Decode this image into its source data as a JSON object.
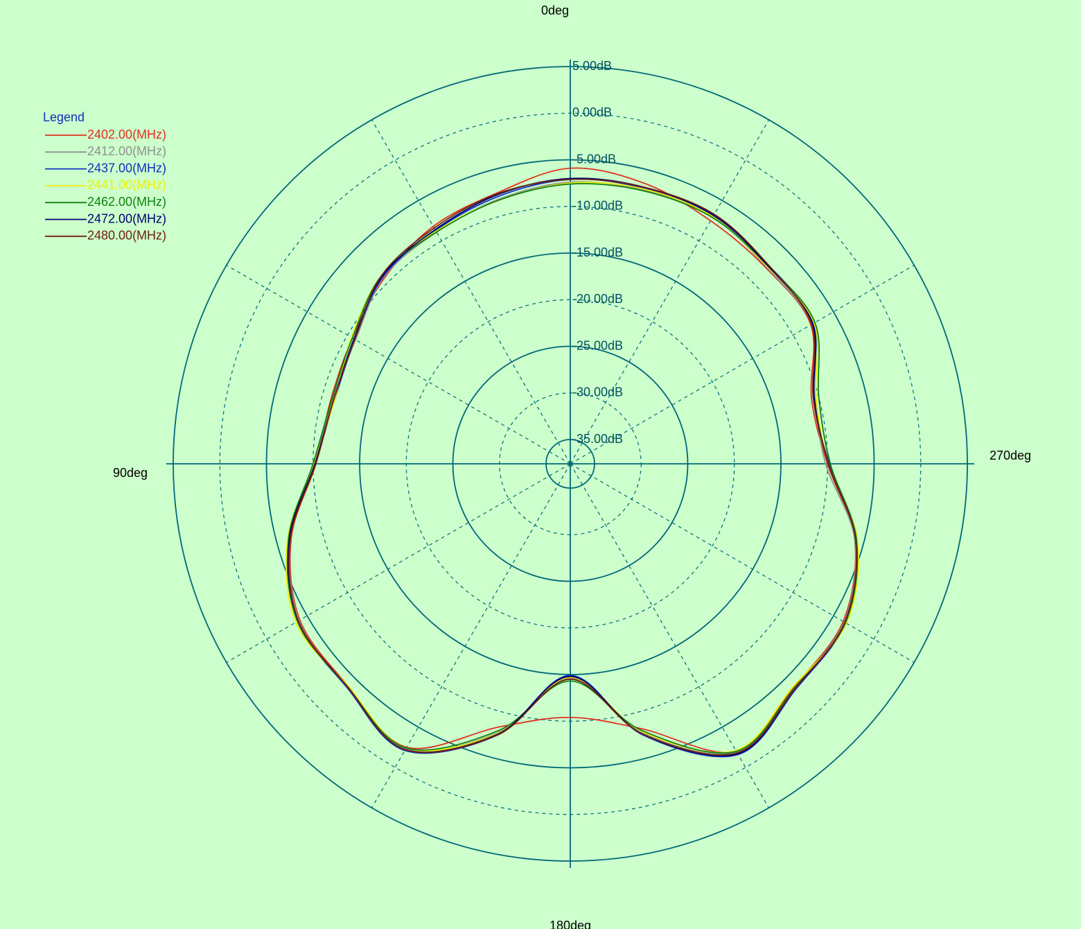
{
  "chart_data": {
    "type": "polar",
    "theta": [
      0,
      15,
      30,
      45,
      60,
      75,
      90,
      105,
      120,
      135,
      150,
      165,
      180,
      195,
      210,
      225,
      240,
      255,
      270,
      285,
      300,
      315,
      330,
      345
    ],
    "rlim": [
      -37.6,
      5
    ],
    "rticks": [
      {
        "value": 5,
        "label": "5.00dB"
      },
      {
        "value": 0,
        "label": "0.00dB"
      },
      {
        "value": -5,
        "label": "-5.00dB"
      },
      {
        "value": -10,
        "label": "-10.00dB"
      },
      {
        "value": -15,
        "label": "-15.00dB"
      },
      {
        "value": -20,
        "label": "-20.00dB"
      },
      {
        "value": -25,
        "label": "-25.00dB"
      },
      {
        "value": -30,
        "label": "-30.00dB"
      },
      {
        "value": -35,
        "label": "-35.00dB"
      }
    ],
    "thetaticks": [
      {
        "value": 0,
        "label": "0deg"
      },
      {
        "value": 90,
        "label": "90deg"
      },
      {
        "value": 180,
        "label": "180deg"
      },
      {
        "value": 270,
        "label": "270deg"
      }
    ],
    "legend_title": "Legend",
    "legend": "upper left",
    "series": [
      {
        "name": "2402.00(MHz)",
        "color": "#e03020",
        "values": [
          -5.9,
          -7.5,
          -8.2,
          -9.4,
          -10.6,
          -11.0,
          -10.3,
          -6.6,
          -4.1,
          -3.9,
          -2.5,
          -8.4,
          -10.4,
          -8.2,
          -2.0,
          -3.7,
          -3.8,
          -6.0,
          -10.0,
          -10.8,
          -7.8,
          -7.9,
          -7.5,
          -6.5
        ]
      },
      {
        "name": "2412.00(MHz)",
        "color": "#909090",
        "values": [
          -7.4,
          -8.2,
          -8.9,
          -9.3,
          -11.0,
          -11.2,
          -10.1,
          -6.5,
          -4.0,
          -3.7,
          -2.3,
          -7.8,
          -14.6,
          -7.7,
          -1.9,
          -3.6,
          -3.7,
          -6.0,
          -10.2,
          -10.4,
          -7.7,
          -7.8,
          -7.0,
          -7.2
        ]
      },
      {
        "name": "2437.00(MHz)",
        "color": "#1030c0",
        "values": [
          -7.1,
          -7.9,
          -8.7,
          -9.2,
          -10.9,
          -11.4,
          -10.2,
          -6.3,
          -3.8,
          -3.7,
          -2.1,
          -7.5,
          -14.9,
          -7.5,
          -1.6,
          -3.4,
          -3.5,
          -5.8,
          -9.8,
          -10.6,
          -7.5,
          -7.5,
          -6.9,
          -7.0
        ]
      },
      {
        "name": "2441.00(MHz)",
        "color": "#f0f000",
        "values": [
          -7.5,
          -8.3,
          -8.8,
          -9.0,
          -10.5,
          -11.4,
          -10.1,
          -6.2,
          -3.6,
          -3.9,
          -2.4,
          -7.7,
          -14.7,
          -7.9,
          -2.1,
          -3.8,
          -3.4,
          -5.7,
          -9.9,
          -10.3,
          -7.4,
          -7.7,
          -7.0,
          -7.1
        ]
      },
      {
        "name": "2462.00(MHz)",
        "color": "#108010",
        "values": [
          -7.6,
          -8.3,
          -8.9,
          -9.0,
          -10.6,
          -11.1,
          -10.0,
          -6.3,
          -3.8,
          -3.8,
          -2.4,
          -8.0,
          -14.3,
          -8.0,
          -2.0,
          -3.6,
          -3.5,
          -5.8,
          -9.7,
          -10.0,
          -7.3,
          -7.6,
          -7.1,
          -7.3
        ]
      },
      {
        "name": "2472.00(MHz)",
        "color": "#000070",
        "values": [
          -7.0,
          -7.7,
          -8.6,
          -9.1,
          -10.8,
          -11.3,
          -10.2,
          -6.4,
          -3.9,
          -3.8,
          -2.2,
          -7.6,
          -14.8,
          -7.6,
          -1.7,
          -3.5,
          -3.6,
          -5.9,
          -9.9,
          -10.5,
          -7.6,
          -7.6,
          -6.8,
          -6.9
        ]
      },
      {
        "name": "2480.00(MHz)",
        "color": "#702010",
        "values": [
          -7.1,
          -7.6,
          -8.4,
          -9.0,
          -10.9,
          -11.3,
          -10.3,
          -6.5,
          -3.9,
          -3.8,
          -2.2,
          -7.5,
          -14.5,
          -7.6,
          -1.8,
          -3.5,
          -3.6,
          -5.9,
          -9.9,
          -10.6,
          -7.7,
          -7.5,
          -6.7,
          -6.9
        ]
      }
    ]
  }
}
